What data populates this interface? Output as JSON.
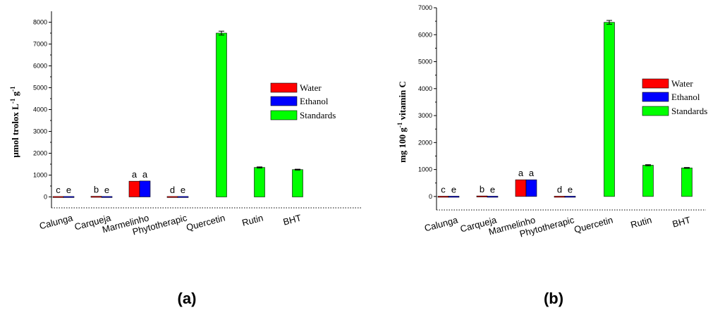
{
  "colors": {
    "water": "#ff0000",
    "ethanol": "#0000ff",
    "standards": "#00ff00",
    "axis": "#000000"
  },
  "panels": [
    {
      "label": "(a)",
      "ylabel_parts": [
        "μ",
        "mol trolox L",
        "-1",
        " g",
        "-1"
      ],
      "legend": [
        "Water",
        "Ethanol",
        "Standards"
      ]
    },
    {
      "label": "(b)",
      "ylabel_parts": [
        "mg 100 g",
        "-1",
        " vitamin C"
      ],
      "legend": [
        "Water",
        "Ethanol",
        "Standards"
      ]
    }
  ],
  "chart_data": [
    {
      "type": "bar",
      "categories": [
        "Calunga",
        "Carqueja",
        "Marmelinho",
        "Phytotherapic",
        "Quercetin",
        "Rutin",
        "BHT"
      ],
      "ylim": [
        -500,
        8500
      ],
      "yticks": [
        0,
        1000,
        2000,
        3000,
        4000,
        5000,
        6000,
        7000,
        8000
      ],
      "series": [
        {
          "name": "Water",
          "values": [
            20,
            30,
            720,
            20,
            null,
            null,
            null
          ],
          "letters": [
            "c",
            "b",
            "a",
            "d",
            null,
            null,
            null
          ]
        },
        {
          "name": "Ethanol",
          "values": [
            20,
            20,
            730,
            20,
            null,
            null,
            null
          ],
          "letters": [
            "e",
            "e",
            "a",
            "e",
            null,
            null,
            null
          ]
        },
        {
          "name": "Standards",
          "values": [
            null,
            null,
            null,
            null,
            7500,
            1350,
            1250
          ],
          "errors": [
            null,
            null,
            null,
            null,
            90,
            25,
            20
          ]
        }
      ]
    },
    {
      "type": "bar",
      "categories": [
        "Calunga",
        "Carqueja",
        "Marmelinho",
        "Phytotherapic",
        "Quercetin",
        "Rutin",
        "BHT"
      ],
      "ylim": [
        -500,
        7000
      ],
      "yticks": [
        0,
        1000,
        2000,
        3000,
        4000,
        5000,
        6000,
        7000
      ],
      "series": [
        {
          "name": "Water",
          "values": [
            10,
            20,
            620,
            10,
            null,
            null,
            null
          ],
          "letters": [
            "c",
            "b",
            "a",
            "d",
            null,
            null,
            null
          ]
        },
        {
          "name": "Ethanol",
          "values": [
            10,
            10,
            620,
            10,
            null,
            null,
            null
          ],
          "letters": [
            "e",
            "e",
            "a",
            "e",
            null,
            null,
            null
          ]
        },
        {
          "name": "Standards",
          "values": [
            null,
            null,
            null,
            null,
            6460,
            1160,
            1060
          ],
          "errors": [
            null,
            null,
            null,
            null,
            70,
            20,
            15
          ]
        }
      ]
    }
  ]
}
